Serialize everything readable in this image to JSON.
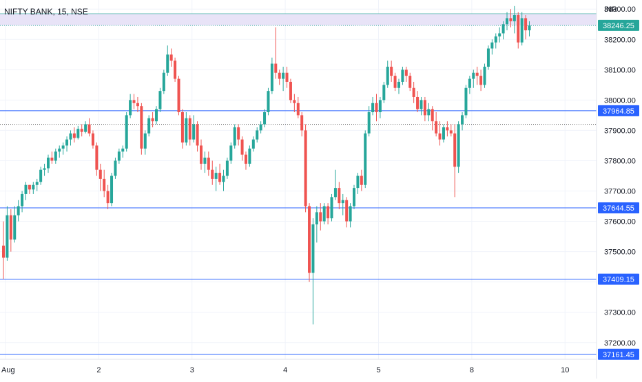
{
  "header": {
    "symbol_title": "NIFTY BANK, 15, NSE"
  },
  "price_axis": {
    "currency": "INR"
  },
  "colors": {
    "up": "#26a69a",
    "down": "#ef5350",
    "level_line": "#2962ff",
    "last_price": "#26a69a",
    "zone_fill": "#e8e3f7",
    "grid": "#f0f3fa"
  },
  "chart_data": {
    "type": "candlestick",
    "title": "NIFTY BANK, 15, NSE",
    "ylabel": "INR",
    "ylim": [
      37145,
      38330
    ],
    "grid": true,
    "y_ticks": [
      37200,
      37300,
      37400,
      37500,
      37600,
      37700,
      37800,
      37900,
      38000,
      38100,
      38200,
      38300
    ],
    "y_tick_labels": [
      "37200.00",
      "37300.00",
      "37400.00",
      "37500.00",
      "37600.00",
      "37700.00",
      "37800.00",
      "37900.00",
      "38000.00",
      "38100.00",
      "38200.00",
      "38300.00"
    ],
    "x_ticks": [
      {
        "bar": 0,
        "label": "Aug"
      },
      {
        "bar": 25,
        "label": "2"
      },
      {
        "bar": 50,
        "label": "3"
      },
      {
        "bar": 75,
        "label": "4"
      },
      {
        "bar": 100,
        "label": "5"
      },
      {
        "bar": 125,
        "label": "8"
      },
      {
        "bar": 150,
        "label": "10"
      }
    ],
    "levels": [
      {
        "name": "level-37964",
        "value": 37964.85,
        "label": "37964.85"
      },
      {
        "name": "level-37644",
        "value": 37644.55,
        "label": "37644.55"
      },
      {
        "name": "level-37409",
        "value": 37409.15,
        "label": "37409.15"
      },
      {
        "name": "level-37161",
        "value": 37161.45,
        "label": "37161.45"
      }
    ],
    "zone": {
      "top": 38285,
      "bottom": 38246.25
    },
    "prev_close": 37920,
    "last_price": {
      "value": 38246.25,
      "label": "38246.25"
    },
    "candles_ohlc": [
      [
        37520,
        37600,
        37410,
        37480
      ],
      [
        37480,
        37650,
        37470,
        37620
      ],
      [
        37620,
        37640,
        37500,
        37540
      ],
      [
        37540,
        37650,
        37530,
        37620
      ],
      [
        37620,
        37670,
        37600,
        37650
      ],
      [
        37650,
        37700,
        37630,
        37690
      ],
      [
        37690,
        37730,
        37670,
        37720
      ],
      [
        37720,
        37720,
        37690,
        37705
      ],
      [
        37705,
        37730,
        37690,
        37720
      ],
      [
        37720,
        37740,
        37700,
        37730
      ],
      [
        37730,
        37780,
        37720,
        37770
      ],
      [
        37770,
        37790,
        37750,
        37775
      ],
      [
        37775,
        37820,
        37760,
        37810
      ],
      [
        37810,
        37830,
        37790,
        37800
      ],
      [
        37800,
        37840,
        37790,
        37830
      ],
      [
        37830,
        37850,
        37810,
        37840
      ],
      [
        37840,
        37860,
        37820,
        37850
      ],
      [
        37850,
        37880,
        37830,
        37870
      ],
      [
        37870,
        37900,
        37850,
        37890
      ],
      [
        37890,
        37910,
        37860,
        37875
      ],
      [
        37875,
        37915,
        37870,
        37905
      ],
      [
        37905,
        37920,
        37880,
        37895
      ],
      [
        37895,
        37930,
        37890,
        37920
      ],
      [
        37920,
        37940,
        37880,
        37890
      ],
      [
        37890,
        37900,
        37840,
        37850
      ],
      [
        37850,
        37860,
        37750,
        37770
      ],
      [
        37770,
        37790,
        37700,
        37740
      ],
      [
        37740,
        37770,
        37680,
        37700
      ],
      [
        37700,
        37720,
        37640,
        37660
      ],
      [
        37660,
        37760,
        37650,
        37750
      ],
      [
        37750,
        37810,
        37740,
        37800
      ],
      [
        37800,
        37840,
        37790,
        37830
      ],
      [
        37830,
        37850,
        37810,
        37840
      ],
      [
        37840,
        37960,
        37830,
        37950
      ],
      [
        37950,
        38020,
        37940,
        38000
      ],
      [
        38000,
        38020,
        37970,
        37990
      ],
      [
        37990,
        38010,
        37960,
        37980
      ],
      [
        37980,
        37990,
        37820,
        37840
      ],
      [
        37840,
        37900,
        37820,
        37890
      ],
      [
        37890,
        37950,
        37880,
        37940
      ],
      [
        37940,
        37960,
        37910,
        37930
      ],
      [
        37930,
        37980,
        37920,
        37970
      ],
      [
        37970,
        38040,
        37960,
        38030
      ],
      [
        38030,
        38100,
        38020,
        38090
      ],
      [
        38090,
        38180,
        38080,
        38150
      ],
      [
        38150,
        38170,
        38110,
        38130
      ],
      [
        38130,
        38140,
        38060,
        38070
      ],
      [
        38070,
        38080,
        37950,
        37960
      ],
      [
        37960,
        37970,
        37840,
        37860
      ],
      [
        37860,
        37960,
        37850,
        37940
      ],
      [
        37940,
        37950,
        37850,
        37870
      ],
      [
        37870,
        37950,
        37860,
        37920
      ],
      [
        37920,
        37930,
        37830,
        37850
      ],
      [
        37850,
        37870,
        37770,
        37790
      ],
      [
        37790,
        37830,
        37760,
        37810
      ],
      [
        37810,
        37830,
        37750,
        37770
      ],
      [
        37770,
        37800,
        37720,
        37740
      ],
      [
        37740,
        37780,
        37700,
        37760
      ],
      [
        37760,
        37790,
        37720,
        37730
      ],
      [
        37730,
        37770,
        37700,
        37750
      ],
      [
        37750,
        37810,
        37740,
        37800
      ],
      [
        37800,
        37860,
        37790,
        37850
      ],
      [
        37850,
        37920,
        37840,
        37910
      ],
      [
        37910,
        37920,
        37850,
        37870
      ],
      [
        37870,
        37880,
        37800,
        37820
      ],
      [
        37820,
        37830,
        37770,
        37790
      ],
      [
        37790,
        37850,
        37780,
        37840
      ],
      [
        37840,
        37880,
        37830,
        37870
      ],
      [
        37870,
        37910,
        37860,
        37900
      ],
      [
        37900,
        37930,
        37890,
        37920
      ],
      [
        37920,
        37970,
        37910,
        37960
      ],
      [
        37960,
        38040,
        37950,
        38030
      ],
      [
        38030,
        38140,
        38020,
        38120
      ],
      [
        38120,
        38240,
        38070,
        38090
      ],
      [
        38090,
        38100,
        38050,
        38070
      ],
      [
        38070,
        38110,
        38030,
        38090
      ],
      [
        38090,
        38110,
        38040,
        38060
      ],
      [
        38060,
        38070,
        37990,
        38000
      ],
      [
        38000,
        38020,
        37960,
        37990
      ],
      [
        37990,
        38010,
        37940,
        37950
      ],
      [
        37950,
        37960,
        37880,
        37900
      ],
      [
        37900,
        37920,
        37630,
        37650
      ],
      [
        37650,
        37660,
        37400,
        37430
      ],
      [
        37430,
        37610,
        37260,
        37590
      ],
      [
        37590,
        37650,
        37530,
        37630
      ],
      [
        37630,
        37660,
        37570,
        37600
      ],
      [
        37600,
        37660,
        37590,
        37650
      ],
      [
        37650,
        37660,
        37590,
        37610
      ],
      [
        37610,
        37690,
        37600,
        37680
      ],
      [
        37680,
        37770,
        37670,
        37710
      ],
      [
        37710,
        37730,
        37640,
        37660
      ],
      [
        37660,
        37690,
        37620,
        37670
      ],
      [
        37670,
        37680,
        37580,
        37600
      ],
      [
        37600,
        37660,
        37580,
        37650
      ],
      [
        37650,
        37720,
        37640,
        37710
      ],
      [
        37710,
        37760,
        37690,
        37750
      ],
      [
        37750,
        37770,
        37700,
        37720
      ],
      [
        37720,
        37900,
        37710,
        37890
      ],
      [
        37890,
        37980,
        37880,
        37960
      ],
      [
        37960,
        38010,
        37950,
        37990
      ],
      [
        37990,
        38020,
        37930,
        37960
      ],
      [
        37960,
        38010,
        37940,
        38000
      ],
      [
        38000,
        38060,
        37990,
        38050
      ],
      [
        38050,
        38130,
        38040,
        38110
      ],
      [
        38110,
        38130,
        38060,
        38080
      ],
      [
        38080,
        38090,
        38030,
        38040
      ],
      [
        38040,
        38070,
        38020,
        38060
      ],
      [
        38060,
        38110,
        38050,
        38100
      ],
      [
        38100,
        38110,
        38060,
        38080
      ],
      [
        38080,
        38090,
        38030,
        38040
      ],
      [
        38040,
        38060,
        37990,
        38010
      ],
      [
        38010,
        38030,
        37960,
        37970
      ],
      [
        37970,
        38010,
        37950,
        38000
      ],
      [
        38000,
        38010,
        37930,
        37950
      ],
      [
        37950,
        37990,
        37930,
        37970
      ],
      [
        37970,
        37980,
        37900,
        37930
      ],
      [
        37930,
        37960,
        37880,
        37890
      ],
      [
        37890,
        37930,
        37850,
        37870
      ],
      [
        37870,
        37920,
        37860,
        37910
      ],
      [
        37910,
        37930,
        37880,
        37900
      ],
      [
        37900,
        37920,
        37880,
        37890
      ],
      [
        37890,
        37920,
        37680,
        37780
      ],
      [
        37780,
        37930,
        37760,
        37920
      ],
      [
        37920,
        37960,
        37900,
        37950
      ],
      [
        37950,
        38050,
        37940,
        38040
      ],
      [
        38040,
        38080,
        38020,
        38070
      ],
      [
        38070,
        38100,
        38040,
        38090
      ],
      [
        38090,
        38110,
        38050,
        38080
      ],
      [
        38080,
        38100,
        38030,
        38050
      ],
      [
        38050,
        38120,
        38040,
        38110
      ],
      [
        38110,
        38180,
        38100,
        38170
      ],
      [
        38170,
        38200,
        38150,
        38190
      ],
      [
        38190,
        38220,
        38170,
        38210
      ],
      [
        38210,
        38240,
        38190,
        38220
      ],
      [
        38220,
        38260,
        38200,
        38250
      ],
      [
        38250,
        38290,
        38230,
        38270
      ],
      [
        38270,
        38300,
        38240,
        38260
      ],
      [
        38260,
        38310,
        38220,
        38280
      ],
      [
        38280,
        38290,
        38170,
        38190
      ],
      [
        38190,
        38290,
        38180,
        38270
      ],
      [
        38270,
        38280,
        38200,
        38230
      ],
      [
        38230,
        38260,
        38210,
        38246.25
      ]
    ]
  }
}
